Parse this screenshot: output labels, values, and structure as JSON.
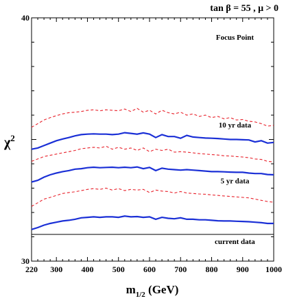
{
  "chart_data": {
    "type": "line",
    "title": "tan β = 55 ,  μ > 0",
    "xlabel": "m",
    "xlabel_sub": "1/2",
    "xlabel_unit": " (GeV)",
    "ylabel": "χ",
    "ylabel_sup": "2",
    "xlim": [
      220,
      1000
    ],
    "ylim": [
      30,
      40
    ],
    "x_ticks": [
      220,
      300,
      400,
      500,
      600,
      700,
      800,
      900,
      1000
    ],
    "y_ticks": [
      30,
      40
    ],
    "grid": false,
    "annotations": [
      {
        "text": "Focus Point",
        "x": 875,
        "y": 39.1
      },
      {
        "text": "10 yr data",
        "x": 875,
        "y": 35.5
      },
      {
        "text": "5 yr data",
        "x": 875,
        "y": 33.2
      },
      {
        "text": "current data",
        "x": 875,
        "y": 30.7
      }
    ],
    "reference_line": {
      "name": "current data",
      "y": 31.1,
      "color": "#000000"
    },
    "series": [
      {
        "style": "dashed",
        "color": "#e8202a",
        "x": [
          220,
          240,
          260,
          280,
          300,
          320,
          340,
          360,
          380,
          400,
          420,
          440,
          460,
          480,
          500,
          520,
          540,
          560,
          580,
          600,
          620,
          640,
          660,
          680,
          700,
          720,
          740,
          760,
          780,
          800,
          820,
          840,
          860,
          880,
          900,
          920,
          940,
          960,
          980,
          1000
        ],
        "y": [
          35.5,
          35.65,
          35.8,
          35.9,
          35.98,
          36.05,
          36.1,
          36.12,
          36.15,
          36.2,
          36.22,
          36.18,
          36.22,
          36.2,
          36.18,
          36.25,
          36.15,
          36.28,
          36.12,
          36.2,
          36.05,
          36.2,
          36.1,
          36.05,
          36.12,
          36.0,
          36.05,
          35.95,
          36.0,
          35.9,
          35.95,
          35.85,
          35.9,
          35.8,
          35.82,
          35.75,
          35.72,
          35.65,
          35.55,
          35.58
        ]
      },
      {
        "style": "solid",
        "color": "#1a2fd6",
        "x": [
          220,
          240,
          260,
          280,
          300,
          320,
          340,
          360,
          380,
          400,
          420,
          440,
          460,
          480,
          500,
          520,
          540,
          560,
          580,
          600,
          620,
          640,
          660,
          680,
          700,
          720,
          740,
          760,
          780,
          800,
          820,
          840,
          860,
          880,
          900,
          920,
          940,
          960,
          980,
          1000
        ],
        "y": [
          34.6,
          34.65,
          34.75,
          34.85,
          34.95,
          35.02,
          35.08,
          35.15,
          35.2,
          35.22,
          35.23,
          35.22,
          35.22,
          35.2,
          35.22,
          35.28,
          35.25,
          35.22,
          35.27,
          35.22,
          35.08,
          35.2,
          35.12,
          35.12,
          35.05,
          35.17,
          35.1,
          35.08,
          35.06,
          35.05,
          35.04,
          35.02,
          35.0,
          35.0,
          34.99,
          34.98,
          34.9,
          34.95,
          34.85,
          34.88
        ]
      },
      {
        "style": "dashed",
        "color": "#e8202a",
        "x": [
          220,
          240,
          260,
          280,
          300,
          320,
          340,
          360,
          380,
          400,
          420,
          440,
          460,
          480,
          500,
          520,
          540,
          560,
          580,
          600,
          620,
          640,
          660,
          680,
          700,
          720,
          740,
          760,
          780,
          800,
          820,
          840,
          860,
          880,
          900,
          920,
          940,
          960,
          980,
          1000
        ],
        "y": [
          34.1,
          34.2,
          34.3,
          34.35,
          34.4,
          34.45,
          34.5,
          34.55,
          34.62,
          34.65,
          34.68,
          34.65,
          34.72,
          34.6,
          34.68,
          34.6,
          34.65,
          34.55,
          34.65,
          34.5,
          34.6,
          34.55,
          34.6,
          34.48,
          34.5,
          34.48,
          34.45,
          34.42,
          34.4,
          34.38,
          34.36,
          34.33,
          34.32,
          34.3,
          34.28,
          34.25,
          34.2,
          34.18,
          34.1,
          34.08
        ]
      },
      {
        "style": "solid",
        "color": "#1a2fd6",
        "x": [
          220,
          240,
          260,
          280,
          300,
          320,
          340,
          360,
          380,
          400,
          420,
          440,
          460,
          480,
          500,
          520,
          540,
          560,
          580,
          600,
          620,
          640,
          660,
          680,
          700,
          720,
          740,
          760,
          780,
          800,
          820,
          840,
          860,
          880,
          900,
          920,
          940,
          960,
          980,
          1000
        ],
        "y": [
          33.25,
          33.32,
          33.45,
          33.55,
          33.62,
          33.68,
          33.72,
          33.78,
          33.8,
          33.84,
          33.86,
          33.84,
          33.85,
          33.86,
          33.84,
          33.86,
          33.84,
          33.87,
          33.8,
          33.85,
          33.72,
          33.82,
          33.78,
          33.76,
          33.74,
          33.76,
          33.74,
          33.72,
          33.7,
          33.68,
          33.68,
          33.67,
          33.66,
          33.65,
          33.65,
          33.62,
          33.6,
          33.6,
          33.56,
          33.55
        ]
      },
      {
        "style": "dashed",
        "color": "#e8202a",
        "x": [
          220,
          240,
          260,
          280,
          300,
          320,
          340,
          360,
          380,
          400,
          420,
          440,
          460,
          480,
          500,
          520,
          540,
          560,
          580,
          600,
          620,
          640,
          660,
          680,
          700,
          720,
          740,
          760,
          780,
          800,
          820,
          840,
          860,
          880,
          900,
          920,
          940,
          960,
          980,
          1000
        ],
        "y": [
          32.25,
          32.4,
          32.55,
          32.62,
          32.7,
          32.78,
          32.82,
          32.85,
          32.9,
          32.95,
          32.98,
          32.95,
          33.0,
          32.92,
          32.98,
          32.9,
          32.95,
          32.92,
          32.95,
          32.82,
          32.92,
          32.88,
          32.86,
          32.8,
          32.86,
          32.8,
          32.78,
          32.76,
          32.75,
          32.72,
          32.7,
          32.68,
          32.66,
          32.64,
          32.62,
          32.6,
          32.55,
          32.5,
          32.45,
          32.42
        ]
      },
      {
        "style": "solid",
        "color": "#1a2fd6",
        "x": [
          220,
          240,
          260,
          280,
          300,
          320,
          340,
          360,
          380,
          400,
          420,
          440,
          460,
          480,
          500,
          520,
          540,
          560,
          580,
          600,
          620,
          640,
          660,
          680,
          700,
          720,
          740,
          760,
          780,
          800,
          820,
          840,
          860,
          880,
          900,
          920,
          940,
          960,
          980,
          1000
        ],
        "y": [
          31.3,
          31.38,
          31.48,
          31.55,
          31.6,
          31.65,
          31.68,
          31.72,
          31.78,
          31.8,
          31.82,
          31.8,
          31.82,
          31.82,
          31.8,
          31.85,
          31.82,
          31.83,
          31.8,
          31.82,
          31.72,
          31.8,
          31.76,
          31.74,
          31.78,
          31.72,
          31.72,
          31.7,
          31.7,
          31.68,
          31.66,
          31.65,
          31.65,
          31.64,
          31.63,
          31.62,
          31.6,
          31.58,
          31.55,
          31.55
        ]
      }
    ]
  }
}
